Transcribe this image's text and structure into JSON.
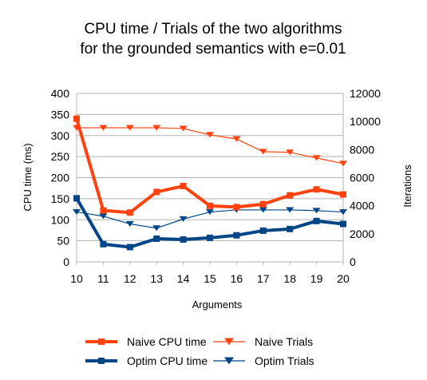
{
  "chart_data": {
    "type": "line",
    "title_lines": [
      "CPU time / Trials of the two algorithms",
      "for the grounded semantics with e=0.01"
    ],
    "xlabel": "Arguments",
    "ylabel_left": "CPU time (ms)",
    "ylabel_right": "Iterations",
    "x": [
      10,
      11,
      12,
      13,
      14,
      15,
      16,
      17,
      18,
      19,
      20
    ],
    "ylim_left": [
      0,
      400
    ],
    "yticks_left": [
      0,
      50,
      100,
      150,
      200,
      250,
      300,
      350,
      400
    ],
    "ylim_right": [
      0,
      12000
    ],
    "yticks_right": [
      0,
      2000,
      4000,
      6000,
      8000,
      10000,
      12000
    ],
    "grid": "horizontal",
    "legend_position": "bottom",
    "series": [
      {
        "name": "Naive CPU time",
        "axis": "left",
        "color": "#ff420e",
        "marker": "square",
        "weight": "thick",
        "values": [
          340,
          122,
          117,
          166,
          180,
          133,
          130,
          137,
          158,
          172,
          160
        ]
      },
      {
        "name": "Naive Trials",
        "axis": "right",
        "color": "#ff420e",
        "marker": "triangle-down",
        "weight": "thin",
        "values": [
          9550,
          9550,
          9550,
          9550,
          9500,
          9050,
          8750,
          7850,
          7800,
          7400,
          7000
        ]
      },
      {
        "name": "Optim CPU time",
        "axis": "left",
        "color": "#004586",
        "marker": "square",
        "weight": "thick",
        "values": [
          151,
          42,
          35,
          55,
          53,
          57,
          63,
          74,
          78,
          97,
          90
        ]
      },
      {
        "name": "Optim Trials",
        "axis": "right",
        "color": "#004586",
        "marker": "triangle-down",
        "weight": "thin",
        "values": [
          3550,
          3250,
          2700,
          2400,
          3050,
          3550,
          3700,
          3700,
          3700,
          3650,
          3550
        ]
      }
    ]
  }
}
